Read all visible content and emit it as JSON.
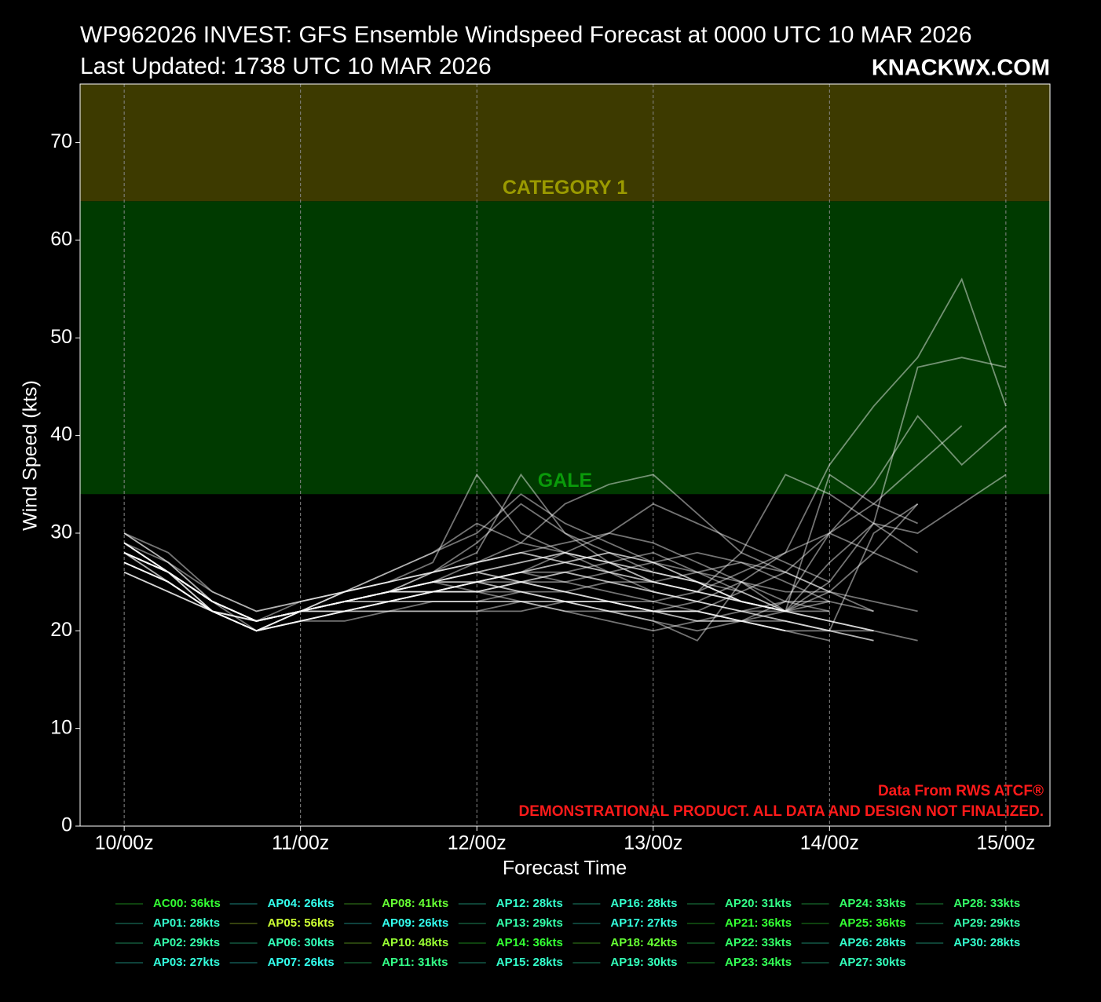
{
  "chart_data": {
    "type": "line",
    "title": "WP962026 INVEST: GFS Ensemble Windspeed Forecast at 0000 UTC 10 MAR 2026",
    "subtitle": "Last Updated: 1738 UTC 10 MAR 2026",
    "brand": "KNACKWX.COM",
    "x_label": "Forecast Time",
    "y_label": "Wind Speed (kts)",
    "annotations": [
      "Data From RWS ATCF®",
      "DEMONSTRATIONAL PRODUCT. ALL DATA AND DESIGN NOT FINALIZED."
    ],
    "annotation_color": "#ff1a1a",
    "line_color": "#ffffff",
    "grid": true,
    "bands": [
      {
        "label": "GALE",
        "from": 34,
        "to": 64,
        "color": "#003a00",
        "label_color": "#0a9a0a"
      },
      {
        "label": "CATEGORY 1",
        "from": 64,
        "to": 76,
        "color": "#3d3a00",
        "label_color": "#9a9a00"
      }
    ],
    "xlim": [
      -6,
      126
    ],
    "ylim": [
      0,
      76
    ],
    "xticks": [
      {
        "value": 0,
        "label": "10/00z"
      },
      {
        "value": 24,
        "label": "11/00z"
      },
      {
        "value": 48,
        "label": "12/00z"
      },
      {
        "value": 72,
        "label": "13/00z"
      },
      {
        "value": 96,
        "label": "14/00z"
      },
      {
        "value": 120,
        "label": "15/00z"
      }
    ],
    "yticks": [
      0,
      10,
      20,
      30,
      40,
      50,
      60,
      70
    ],
    "x": [
      0,
      6,
      12,
      18,
      24,
      30,
      36,
      42,
      48,
      54,
      60,
      66,
      72,
      78,
      84,
      90,
      96,
      102,
      108,
      114,
      120
    ],
    "series": [
      {
        "name": "AC00: 36kts",
        "color": "#33ff33",
        "values": [
          30,
          27,
          23,
          21,
          23,
          24,
          25,
          27,
          36,
          30,
          28,
          27,
          26,
          25,
          23,
          22,
          36,
          33,
          31,
          null,
          null
        ]
      },
      {
        "name": "AP01: 28kts",
        "color": "#33ffcc",
        "values": [
          28,
          26,
          23,
          21,
          22,
          23,
          24,
          25,
          26,
          25,
          24,
          23,
          22,
          22,
          21,
          21,
          20,
          20,
          19,
          null,
          null
        ]
      },
      {
        "name": "AP02: 29kts",
        "color": "#33ffaa",
        "values": [
          29,
          26,
          22,
          20,
          22,
          23,
          23,
          24,
          25,
          24,
          23,
          23,
          22,
          23,
          22,
          22,
          21,
          20,
          null,
          null,
          null
        ]
      },
      {
        "name": "AP03: 27kts",
        "color": "#33ffdd",
        "values": [
          27,
          25,
          22,
          21,
          22,
          22,
          23,
          23,
          23,
          23,
          22,
          22,
          22,
          22,
          21,
          20,
          null,
          null,
          null,
          null,
          null
        ]
      },
      {
        "name": "AP04: 26kts",
        "color": "#33ffee",
        "values": [
          26,
          24,
          22,
          20,
          21,
          22,
          22,
          22,
          22,
          22,
          23,
          23,
          22,
          21,
          21,
          20,
          20,
          19,
          null,
          null,
          null
        ]
      },
      {
        "name": "AP05: 56kts",
        "color": "#ccff33",
        "values": [
          28,
          25,
          22,
          20,
          21,
          22,
          23,
          24,
          24,
          25,
          26,
          25,
          24,
          23,
          25,
          28,
          37,
          43,
          48,
          56,
          43
        ]
      },
      {
        "name": "AP06: 30kts",
        "color": "#33ffbb",
        "values": [
          30,
          27,
          23,
          21,
          22,
          23,
          24,
          24,
          25,
          26,
          27,
          28,
          27,
          26,
          25,
          24,
          24,
          23,
          22,
          null,
          null
        ]
      },
      {
        "name": "AP07: 26kts",
        "color": "#33ffee",
        "values": [
          26,
          24,
          22,
          20,
          21,
          21,
          22,
          22,
          22,
          23,
          23,
          23,
          23,
          22,
          21,
          20,
          19,
          null,
          null,
          null,
          null
        ]
      },
      {
        "name": "AP08: 41kts",
        "color": "#66ff33",
        "values": [
          28,
          26,
          23,
          21,
          22,
          23,
          24,
          25,
          25,
          26,
          25,
          24,
          23,
          24,
          26,
          28,
          30,
          33,
          37,
          41,
          null
        ]
      },
      {
        "name": "AP09: 26kts",
        "color": "#33ffee",
        "values": [
          26,
          24,
          22,
          21,
          22,
          22,
          23,
          23,
          23,
          23,
          23,
          22,
          22,
          21,
          21,
          22,
          23,
          null,
          null,
          null,
          null
        ]
      },
      {
        "name": "AP10: 48kts",
        "color": "#99ff33",
        "values": [
          29,
          26,
          23,
          21,
          22,
          24,
          25,
          26,
          27,
          28,
          27,
          26,
          25,
          24,
          23,
          22,
          25,
          31,
          47,
          48,
          47
        ]
      },
      {
        "name": "AP11: 31kts",
        "color": "#33ff88",
        "values": [
          28,
          26,
          22,
          20,
          22,
          24,
          26,
          28,
          31,
          29,
          28,
          26,
          24,
          23,
          22,
          21,
          20,
          19,
          null,
          null,
          null
        ]
      },
      {
        "name": "AP12: 28kts",
        "color": "#33ffcc",
        "values": [
          27,
          25,
          22,
          20,
          21,
          22,
          23,
          24,
          25,
          26,
          28,
          27,
          26,
          25,
          23,
          22,
          null,
          null,
          null,
          null,
          null
        ]
      },
      {
        "name": "AP13: 29kts",
        "color": "#33ffaa",
        "values": [
          29,
          26,
          22,
          20,
          22,
          23,
          24,
          25,
          26,
          25,
          24,
          23,
          22,
          22,
          21,
          20,
          null,
          null,
          null,
          null,
          null
        ]
      },
      {
        "name": "AP14: 36kts",
        "color": "#33ff33",
        "values": [
          28,
          26,
          23,
          21,
          22,
          23,
          24,
          26,
          28,
          36,
          30,
          28,
          26,
          25,
          24,
          22,
          21,
          20,
          null,
          null,
          null
        ]
      },
      {
        "name": "AP15: 28kts",
        "color": "#33ffcc",
        "values": [
          27,
          25,
          22,
          21,
          22,
          23,
          24,
          25,
          26,
          27,
          28,
          27,
          25,
          24,
          23,
          22,
          22,
          null,
          null,
          null,
          null
        ]
      },
      {
        "name": "AP16: 28kts",
        "color": "#33ffcc",
        "values": [
          28,
          26,
          23,
          21,
          22,
          22,
          23,
          24,
          24,
          25,
          26,
          27,
          28,
          26,
          24,
          22,
          null,
          null,
          null,
          null,
          null
        ]
      },
      {
        "name": "AP17: 27kts",
        "color": "#33ffdd",
        "values": [
          27,
          25,
          22,
          20,
          21,
          22,
          22,
          23,
          23,
          24,
          24,
          25,
          25,
          26,
          27,
          26,
          24,
          null,
          null,
          null,
          null
        ]
      },
      {
        "name": "AP18: 42kts",
        "color": "#66ff33",
        "values": [
          28,
          26,
          23,
          21,
          22,
          23,
          24,
          24,
          25,
          25,
          24,
          23,
          22,
          22,
          24,
          26,
          30,
          35,
          42,
          37,
          41
        ]
      },
      {
        "name": "AP19: 30kts",
        "color": "#33ffbb",
        "values": [
          28,
          25,
          22,
          20,
          21,
          22,
          23,
          24,
          24,
          24,
          23,
          22,
          21,
          20,
          21,
          23,
          30,
          28,
          26,
          null,
          null
        ]
      },
      {
        "name": "AP20: 31kts",
        "color": "#33ff88",
        "values": [
          27,
          25,
          22,
          20,
          22,
          23,
          24,
          25,
          25,
          24,
          23,
          22,
          21,
          19,
          25,
          22,
          27,
          31,
          28,
          null,
          null
        ]
      },
      {
        "name": "AP21: 36kts",
        "color": "#33ff33",
        "values": [
          30,
          28,
          24,
          22,
          23,
          24,
          25,
          26,
          27,
          28,
          27,
          26,
          25,
          24,
          28,
          36,
          34,
          31,
          30,
          33,
          36
        ]
      },
      {
        "name": "AP22: 33kts",
        "color": "#33ff66",
        "values": [
          29,
          26,
          23,
          21,
          22,
          23,
          24,
          24,
          25,
          26,
          26,
          25,
          24,
          23,
          22,
          21,
          20,
          30,
          33,
          null,
          null
        ]
      },
      {
        "name": "AP23: 34kts",
        "color": "#33ff55",
        "values": [
          28,
          26,
          23,
          21,
          22,
          24,
          26,
          28,
          30,
          34,
          31,
          29,
          27,
          25,
          23,
          22,
          21,
          20,
          null,
          null,
          null
        ]
      },
      {
        "name": "AP24: 33kts",
        "color": "#33ff66",
        "values": [
          29,
          26,
          23,
          21,
          22,
          23,
          24,
          26,
          29,
          33,
          30,
          27,
          25,
          24,
          23,
          22,
          24,
          28,
          33,
          null,
          null
        ]
      },
      {
        "name": "AP25: 36kts",
        "color": "#33ff33",
        "values": [
          28,
          26,
          23,
          20,
          22,
          23,
          24,
          25,
          27,
          29,
          33,
          35,
          36,
          32,
          28,
          26,
          24,
          22,
          null,
          null,
          null
        ]
      },
      {
        "name": "AP26: 28kts",
        "color": "#33ffcc",
        "values": [
          27,
          25,
          22,
          21,
          22,
          23,
          24,
          24,
          25,
          26,
          27,
          28,
          27,
          25,
          23,
          22,
          null,
          null,
          null,
          null,
          null
        ]
      },
      {
        "name": "AP27: 30kts",
        "color": "#33ffbb",
        "values": [
          28,
          26,
          23,
          21,
          22,
          23,
          24,
          25,
          26,
          27,
          28,
          30,
          29,
          27,
          25,
          23,
          22,
          null,
          null,
          null,
          null
        ]
      },
      {
        "name": "AP28: 33kts",
        "color": "#33ff66",
        "values": [
          29,
          27,
          24,
          22,
          23,
          24,
          25,
          26,
          27,
          28,
          29,
          30,
          33,
          31,
          29,
          27,
          25,
          null,
          null,
          null,
          null
        ]
      },
      {
        "name": "AP29: 29kts",
        "color": "#33ffaa",
        "values": [
          29,
          26,
          23,
          21,
          22,
          23,
          24,
          25,
          24,
          23,
          22,
          21,
          20,
          21,
          22,
          23,
          23,
          22,
          null,
          null,
          null
        ]
      },
      {
        "name": "AP30: 28kts",
        "color": "#33ffcc",
        "values": [
          28,
          26,
          23,
          21,
          22,
          23,
          23,
          24,
          24,
          25,
          25,
          26,
          27,
          28,
          27,
          25,
          23,
          null,
          null,
          null,
          null
        ]
      }
    ]
  }
}
